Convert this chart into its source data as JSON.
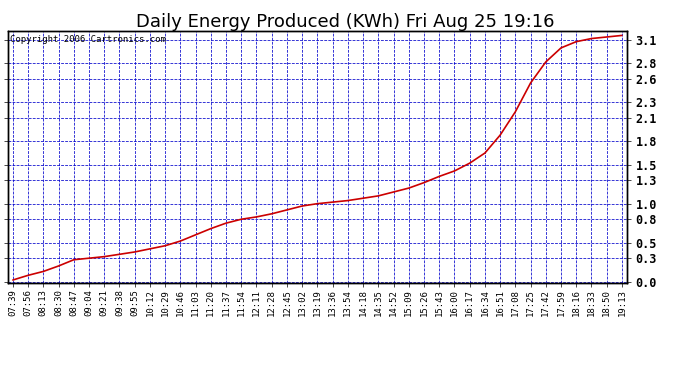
{
  "title": "Daily Energy Produced (KWh) Fri Aug 25 19:16",
  "copyright_text": "Copyright 2006 Cartronics.com",
  "line_color": "#cc0000",
  "background_color": "#ffffff",
  "plot_bg_color": "#ffffff",
  "grid_color": "#0000cc",
  "border_color": "#000000",
  "yticks": [
    0.0,
    0.3,
    0.5,
    0.8,
    1.0,
    1.3,
    1.5,
    1.8,
    2.1,
    2.3,
    2.6,
    2.8,
    3.1
  ],
  "ylim": [
    -0.02,
    3.22
  ],
  "x_labels": [
    "07:39",
    "07:56",
    "08:13",
    "08:30",
    "08:47",
    "09:04",
    "09:21",
    "09:38",
    "09:55",
    "10:12",
    "10:29",
    "10:46",
    "11:03",
    "11:20",
    "11:37",
    "11:54",
    "12:11",
    "12:28",
    "12:45",
    "13:02",
    "13:19",
    "13:36",
    "13:54",
    "14:18",
    "14:35",
    "14:52",
    "15:09",
    "15:26",
    "15:43",
    "16:00",
    "16:17",
    "16:34",
    "16:51",
    "17:08",
    "17:25",
    "17:42",
    "17:59",
    "18:16",
    "18:33",
    "18:50",
    "19:13"
  ],
  "y_values": [
    0.02,
    0.08,
    0.13,
    0.2,
    0.28,
    0.3,
    0.32,
    0.35,
    0.38,
    0.42,
    0.46,
    0.52,
    0.6,
    0.68,
    0.75,
    0.8,
    0.83,
    0.87,
    0.92,
    0.97,
    1.0,
    1.02,
    1.04,
    1.07,
    1.1,
    1.15,
    1.2,
    1.27,
    1.35,
    1.42,
    1.52,
    1.65,
    1.88,
    2.18,
    2.55,
    2.82,
    3.0,
    3.08,
    3.12,
    3.14,
    3.16
  ],
  "title_fontsize": 13,
  "tick_fontsize": 6.5,
  "copyright_fontsize": 6.5
}
